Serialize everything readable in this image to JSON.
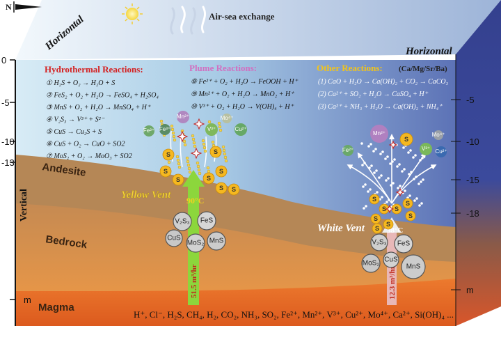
{
  "labels": {
    "air_sea": "Air-sea exchange",
    "horizontal_left": "Horizontal",
    "horizontal_right": "Horizontal",
    "vertical": "Vertical",
    "north": "N",
    "andesite": "Andesite",
    "bedrock": "Bedrock",
    "magma": "Magma",
    "yellow_vent": "Yellow Vent",
    "white_vent": "White Vent",
    "yellow_temp": "90°C",
    "white_temp": "38°C",
    "yellow_flux": "51.5 m³/hr",
    "white_flux": "12.3 m³/hr"
  },
  "depth_ticks_left": [
    "0",
    "-5",
    "-10",
    "-13",
    "m"
  ],
  "depth_ticks_right": [
    "-5",
    "-10",
    "-15",
    "-18",
    "m"
  ],
  "hydrothermal": {
    "title": "Hydrothermal Reactions:",
    "color": "#d42020",
    "items": [
      "① H₂S + O₂ → H₂O + S",
      "② FeS₂ + O₂ + H₂O → FeSO₄ + H₂SO₄",
      "③ MnS + O₂ + H₂O → MnSO₄ + H⁺",
      "④ V₂S₃ → V³⁺ + S²⁻",
      "⑤ CuS → Cu₂S + S",
      "⑥ CuS + O₂ → CuO + SO2",
      "⑦ MoS₂ + O₂ → MoO₃ + SO2"
    ]
  },
  "plume": {
    "title": "Plume Reactions:",
    "color": "#d070c0",
    "items": [
      "⑧ Fe²⁺ + O₂ + H₂O → FeOOH + H⁺",
      "⑨ Mn²⁺ + O₂ + H₂O → MnO₂ + H⁺",
      "⑩ V³⁺ + O₂ + H₂O → V(OH)₄ + H⁺"
    ]
  },
  "other": {
    "title": "Other Reactions:",
    "subtitle": "(Ca/Mg/Sr/Ba)",
    "color": "#f2c41a",
    "items": [
      "(1) CaO + H₂O → Ca(OH)₂ + CO₂ → CaCO₃",
      "(2) Ca²⁺ + SO₂ + H₂O → CaSO₄ + H⁺",
      "(3) Ca²⁺ + NH₃ + H₂O → Ca(OH)₂ + NH₄⁺"
    ]
  },
  "magma_species": "H⁺, Cl⁻, H₂S, CH₄, H₂, CO₂, NH₃, SO₂, Fe²⁺, Mn²⁺, V³⁺, Cu²⁺, Mo⁴⁺, Ca²⁺, Si(OH)₄ ...",
  "ions_yellow": [
    "Fe²⁺",
    "Fe³⁺",
    "Mn²⁺",
    "V³⁺",
    "Mo⁴⁺",
    "Cu²⁺"
  ],
  "ions_white": [
    "Mn²⁺",
    "Mo⁴⁺",
    "Fe²⁺",
    "V³⁺",
    "Cu²⁺"
  ],
  "minerals_yellow": [
    "V₂S₃",
    "FeS",
    "CuS",
    "MoS₂",
    "MnS"
  ],
  "minerals_white": [
    "V₂S₃",
    "FeS",
    "MoS₂",
    "CuS",
    "MnS"
  ],
  "sulfur_label": "S",
  "colors": {
    "yellow_arrow": "#8cd63c",
    "white_arrow": "#e8b8b8",
    "magma": "#e87228",
    "bedrock": "#f0a24a",
    "andesite": "#b88a5a",
    "sulfur": "#f5b820"
  }
}
